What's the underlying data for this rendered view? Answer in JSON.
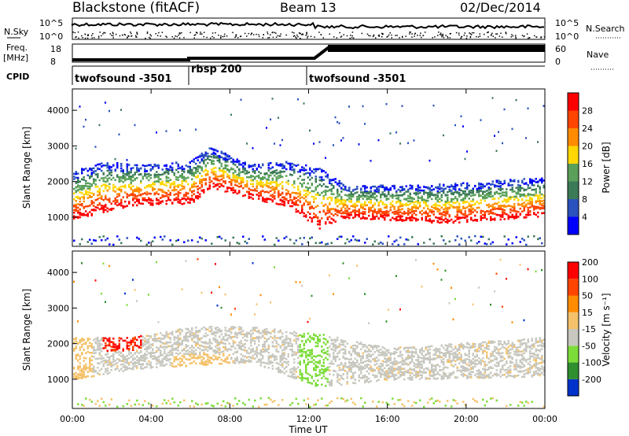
{
  "header": {
    "station": "Blackstone (fitACF)",
    "beam": "Beam 13",
    "date": "02/Dec/2014"
  },
  "top_panels": {
    "nsky_label": "N.Sky",
    "nsky_ticks": [
      "10^5",
      "10^0"
    ],
    "nsearch_label": "N.Search",
    "nsearch_ticks": [
      "10^5",
      "10^0"
    ],
    "freq_label_1": "Freq.",
    "freq_label_2": "[MHz]",
    "freq_ticks": [
      "18",
      "8"
    ],
    "nave_label": "Nave",
    "nave_ticks": [
      "60",
      "0"
    ],
    "cpid_label": "CPID",
    "cpid_segments": [
      {
        "name": "twofsound -3501",
        "start_h": 0,
        "end_h": 6.0
      },
      {
        "name": "rbsp 200",
        "start_h": 6.0,
        "end_h": 12.0
      },
      {
        "name": "twofsound -3501",
        "start_h": 12.0,
        "end_h": 24
      }
    ]
  },
  "chart_data": [
    {
      "type": "heatmap",
      "panel": "power",
      "ylabel": "Slant Range [km]",
      "colorbar_label": "Power [dB]",
      "x_ticks": [
        "00:00",
        "04:00",
        "08:00",
        "12:00",
        "16:00",
        "20:00",
        "00:00"
      ],
      "xlim_hours": [
        0,
        24
      ],
      "y_ticks": [
        1000,
        2000,
        3000,
        4000
      ],
      "ylim_km": [
        180,
        4600
      ],
      "colorbar_ticks": [
        4,
        8,
        12,
        16,
        20,
        24,
        28
      ],
      "colorbar_range": [
        0,
        32
      ],
      "colors": [
        "#0000ff",
        "#2a52be",
        "#3b7a57",
        "#5aa05a",
        "#ffd700",
        "#ff8c00",
        "#ff4500",
        "#ff0000"
      ],
      "echo_band": [
        {
          "t": 0,
          "lower": 950,
          "upper": 2300
        },
        {
          "t": 1.5,
          "lower": 1150,
          "upper": 2600
        },
        {
          "t": 3,
          "lower": 1350,
          "upper": 2500
        },
        {
          "t": 6,
          "lower": 1400,
          "upper": 2600
        },
        {
          "t": 7,
          "lower": 1850,
          "upper": 3000
        },
        {
          "t": 9,
          "lower": 1550,
          "upper": 2500
        },
        {
          "t": 11,
          "lower": 1300,
          "upper": 2600
        },
        {
          "t": 12.5,
          "lower": 700,
          "upper": 2400
        },
        {
          "t": 14,
          "lower": 1000,
          "upper": 1900
        },
        {
          "t": 19,
          "lower": 850,
          "upper": 1950
        },
        {
          "t": 24,
          "lower": 1050,
          "upper": 2150
        }
      ]
    },
    {
      "type": "heatmap",
      "panel": "velocity",
      "xlabel": "Time UT",
      "ylabel": "Slant Range [km]",
      "colorbar_label": "Velocity [m s⁻¹]",
      "x_ticks": [
        "00:00",
        "04:00",
        "08:00",
        "12:00",
        "16:00",
        "20:00",
        "00:00"
      ],
      "xlim_hours": [
        0,
        24
      ],
      "y_ticks": [
        1000,
        2000,
        3000,
        4000
      ],
      "ylim_km": [
        180,
        4600
      ],
      "colorbar_ticks": [
        200,
        100,
        50,
        15,
        -15,
        -50,
        -100,
        -200
      ],
      "colors": [
        "#0033cc",
        "#2f8f2f",
        "#7ddc3a",
        "#c8c8c0",
        "#f5c26b",
        "#ff8c00",
        "#ff4500",
        "#ff0000"
      ],
      "echo_band": [
        {
          "t": 0,
          "lower": 1000,
          "upper": 2200
        },
        {
          "t": 3,
          "lower": 1300,
          "upper": 2200
        },
        {
          "t": 6,
          "lower": 1400,
          "upper": 2500
        },
        {
          "t": 9,
          "lower": 1500,
          "upper": 2500
        },
        {
          "t": 12.5,
          "lower": 800,
          "upper": 2300
        },
        {
          "t": 16,
          "lower": 1000,
          "upper": 1900
        },
        {
          "t": 24,
          "lower": 1100,
          "upper": 2200
        }
      ]
    }
  ]
}
